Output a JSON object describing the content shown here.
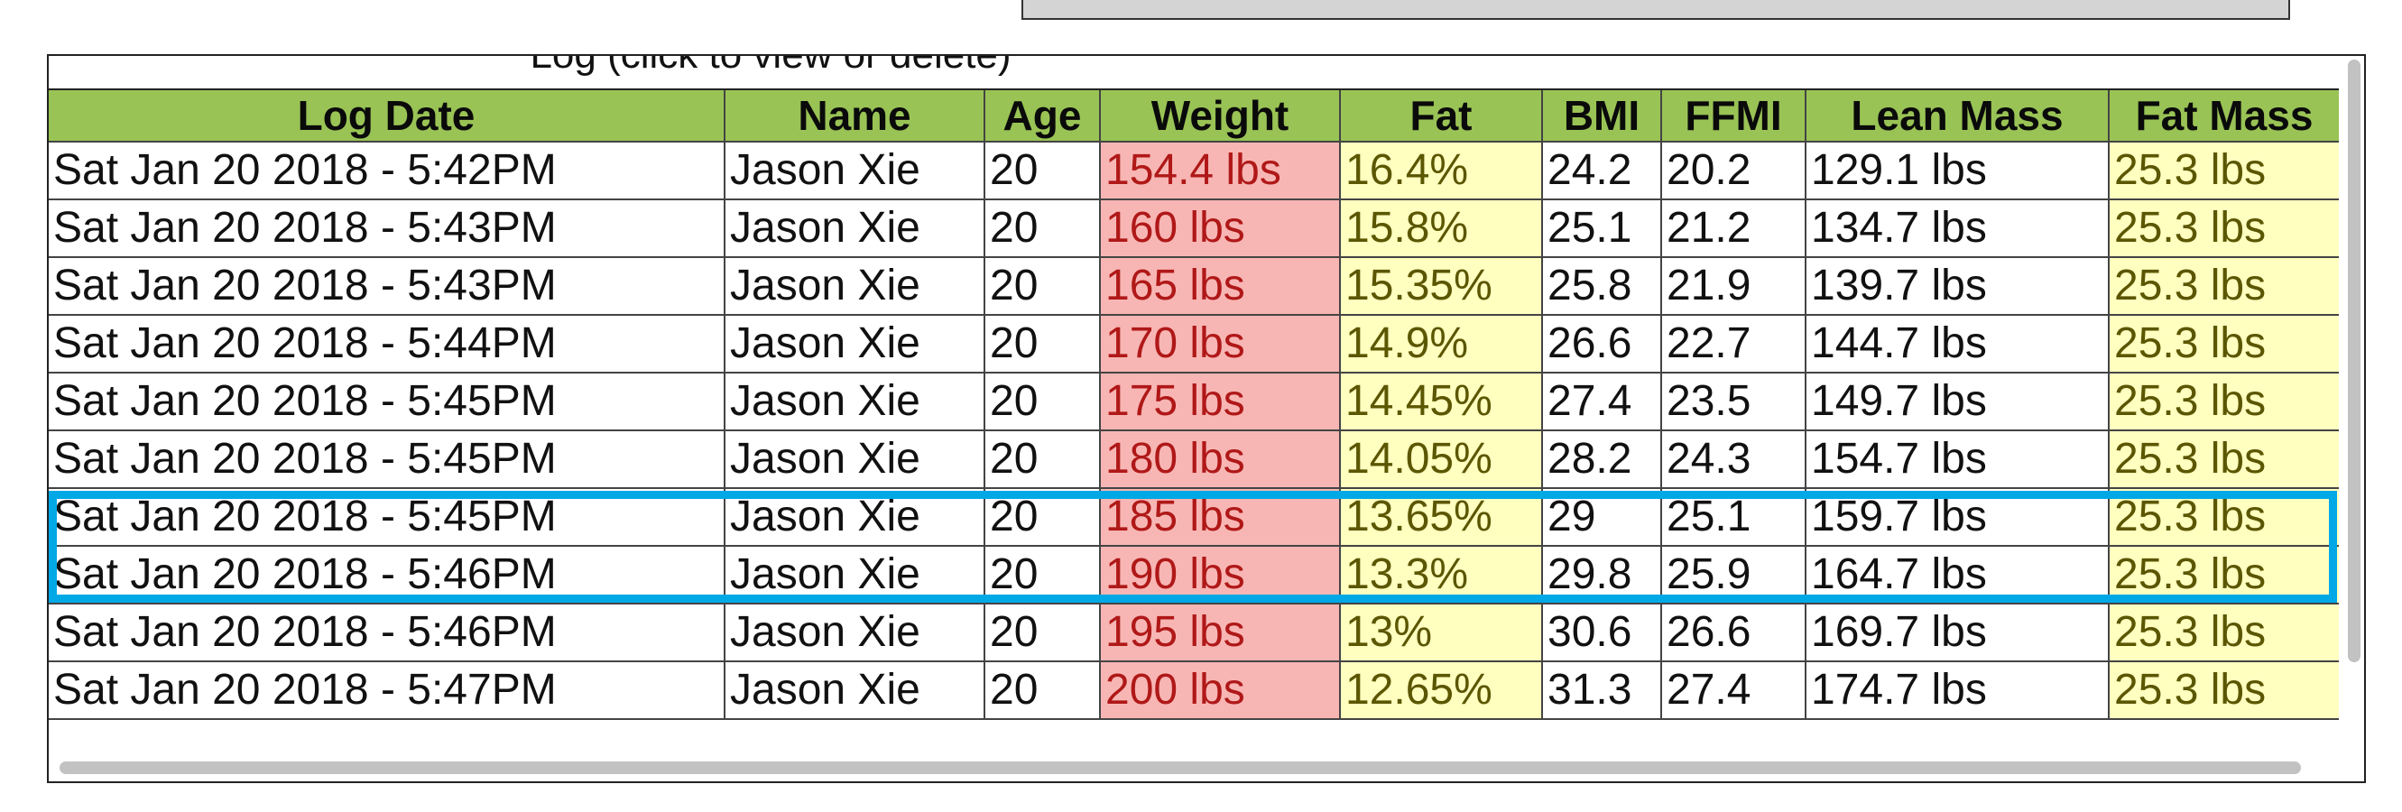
{
  "log_caption": "Log (click to view or delete)",
  "columns": [
    "Log Date",
    "Name",
    "Age",
    "Weight",
    "Fat",
    "BMI",
    "FFMI",
    "Lean Mass",
    "Fat Mass"
  ],
  "rows": [
    {
      "date": "Sat Jan 20 2018 - 5:42PM",
      "name": "Jason Xie",
      "age": "20",
      "weight": "154.4 lbs",
      "fat": "16.4%",
      "bmi": "24.2",
      "ffmi": "20.2",
      "lean": "129.1 lbs",
      "fatmass": "25.3 lbs"
    },
    {
      "date": "Sat Jan 20 2018 - 5:43PM",
      "name": "Jason Xie",
      "age": "20",
      "weight": "160 lbs",
      "fat": "15.8%",
      "bmi": "25.1",
      "ffmi": "21.2",
      "lean": "134.7 lbs",
      "fatmass": "25.3 lbs"
    },
    {
      "date": "Sat Jan 20 2018 - 5:43PM",
      "name": "Jason Xie",
      "age": "20",
      "weight": "165 lbs",
      "fat": "15.35%",
      "bmi": "25.8",
      "ffmi": "21.9",
      "lean": "139.7 lbs",
      "fatmass": "25.3 lbs"
    },
    {
      "date": "Sat Jan 20 2018 - 5:44PM",
      "name": "Jason Xie",
      "age": "20",
      "weight": "170 lbs",
      "fat": "14.9%",
      "bmi": "26.6",
      "ffmi": "22.7",
      "lean": "144.7 lbs",
      "fatmass": "25.3 lbs"
    },
    {
      "date": "Sat Jan 20 2018 - 5:45PM",
      "name": "Jason Xie",
      "age": "20",
      "weight": "175 lbs",
      "fat": "14.45%",
      "bmi": "27.4",
      "ffmi": "23.5",
      "lean": "149.7 lbs",
      "fatmass": "25.3 lbs"
    },
    {
      "date": "Sat Jan 20 2018 - 5:45PM",
      "name": "Jason Xie",
      "age": "20",
      "weight": "180 lbs",
      "fat": "14.05%",
      "bmi": "28.2",
      "ffmi": "24.3",
      "lean": "154.7 lbs",
      "fatmass": "25.3 lbs"
    },
    {
      "date": "Sat Jan 20 2018 - 5:45PM",
      "name": "Jason Xie",
      "age": "20",
      "weight": "185 lbs",
      "fat": "13.65%",
      "bmi": "29",
      "ffmi": "25.1",
      "lean": "159.7 lbs",
      "fatmass": "25.3 lbs"
    },
    {
      "date": "Sat Jan 20 2018 - 5:46PM",
      "name": "Jason Xie",
      "age": "20",
      "weight": "190 lbs",
      "fat": "13.3%",
      "bmi": "29.8",
      "ffmi": "25.9",
      "lean": "164.7 lbs",
      "fatmass": "25.3 lbs"
    },
    {
      "date": "Sat Jan 20 2018 - 5:46PM",
      "name": "Jason Xie",
      "age": "20",
      "weight": "195 lbs",
      "fat": "13%",
      "bmi": "30.6",
      "ffmi": "26.6",
      "lean": "169.7 lbs",
      "fatmass": "25.3 lbs"
    },
    {
      "date": "Sat Jan 20 2018 - 5:47PM",
      "name": "Jason Xie",
      "age": "20",
      "weight": "200 lbs",
      "fat": "12.65%",
      "bmi": "31.3",
      "ffmi": "27.4",
      "lean": "174.7 lbs",
      "fatmass": "25.3 lbs"
    }
  ],
  "colors": {
    "header_bg": "#99c355",
    "weight_bg": "#f7b6b4",
    "weight_text": "#b01818",
    "fat_bg": "#ffffc0",
    "highlight": "#00a8e6"
  }
}
